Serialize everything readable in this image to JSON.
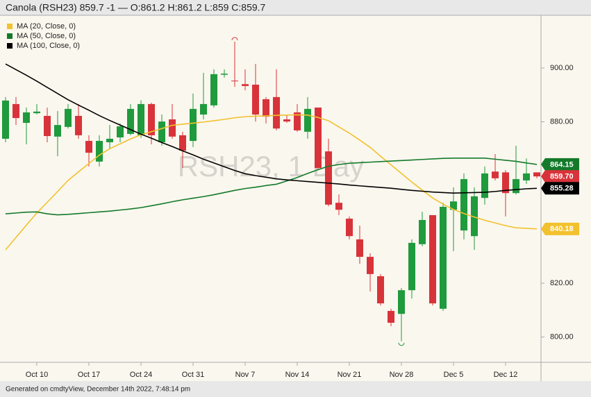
{
  "chart_data": {
    "type": "candlestick",
    "title": "Canola (RSH23) 859.7 -1 — O:861.2 H:861.2 L:859 C:859.7",
    "watermark": "RSH23, 1 Day",
    "footer": "Generated on cmdtyView, December 14th 2022, 7:48:14 pm",
    "categories": [
      null,
      null,
      null,
      "Oct 10",
      null,
      null,
      null,
      null,
      "Oct 17",
      null,
      null,
      null,
      null,
      "Oct 24",
      null,
      null,
      null,
      null,
      "Oct 31",
      null,
      null,
      null,
      null,
      "Nov 7",
      null,
      null,
      null,
      null,
      "Nov 14",
      null,
      null,
      null,
      null,
      "Nov 21",
      null,
      null,
      null,
      null,
      "Nov 28",
      null,
      null,
      null,
      null,
      "Dec 5",
      null,
      null,
      null,
      null,
      "Dec 12",
      null,
      null,
      null
    ],
    "up_color": "#1f9a3d",
    "down_color": "#d8333a",
    "open": [
      873.7,
      886.6,
      879.6,
      883.2,
      882.2,
      874.5,
      878.1,
      882.2,
      872.9,
      865.2,
      872.4,
      874.2,
      875.5,
      875,
      886.6,
      872.4,
      880.9,
      875,
      872.9,
      882.7,
      886.1,
      897.5,
      895.3,
      894,
      893.8,
      888.4,
      889.2,
      880.9,
      883.5,
      876.3,
      885.3,
      869,
      849.9,
      844,
      836.3,
      829.8,
      822.6,
      809.7,
      808.6,
      817.4,
      834.5,
      845.3,
      810.5,
      847.3,
      839.6,
      837.5,
      851.7,
      861.5,
      861.2,
      853.5,
      858.2,
      861.2
    ],
    "high": [
      889.2,
      889.2,
      885.3,
      886.6,
      885.3,
      884,
      886.6,
      886.6,
      875,
      875,
      878.8,
      879.4,
      886.6,
      888,
      887.1,
      882.7,
      886.6,
      876.3,
      890.5,
      898.2,
      899.5,
      899.5,
      909.8,
      899.5,
      901.5,
      889.2,
      899.5,
      882.5,
      886.6,
      889.2,
      885.3,
      873.7,
      853,
      844.8,
      841.4,
      831.1,
      823.4,
      810.5,
      818.2,
      836.3,
      846.6,
      845.3,
      849.9,
      855.6,
      860.8,
      855.6,
      863.4,
      868,
      862,
      871.1,
      866.4,
      861.2
    ],
    "low": [
      872.4,
      878.8,
      871.6,
      882.7,
      872.4,
      867.2,
      877.5,
      873.7,
      863.4,
      863.4,
      869.8,
      872.4,
      875,
      874,
      871.6,
      871.1,
      873.7,
      862.8,
      870.6,
      880.9,
      885.3,
      896.4,
      893,
      891.7,
      880.1,
      879.4,
      876.8,
      879.6,
      876.3,
      873.7,
      862,
      848.6,
      845.3,
      836.3,
      827.2,
      816.9,
      811.7,
      804,
      798.4,
      814.3,
      833.7,
      811.7,
      809.7,
      831.9,
      836.3,
      832.4,
      849.2,
      858.2,
      844.8,
      853,
      856.9,
      859
    ],
    "close": [
      887.9,
      881.4,
      883.5,
      883.8,
      874.7,
      878.8,
      884.8,
      875,
      868.5,
      872.9,
      873.7,
      878.3,
      884.8,
      886.6,
      875,
      880.1,
      874.5,
      869.3,
      884.8,
      886.6,
      897.7,
      897.9,
      895.1,
      893.3,
      882.7,
      881.9,
      877.5,
      880.1,
      876.8,
      884.8,
      862.8,
      849.2,
      847.3,
      837.5,
      829.8,
      823.4,
      812.5,
      805.3,
      817.4,
      835,
      843.5,
      812.5,
      848.4,
      850.4,
      858.7,
      852.3,
      860.8,
      859,
      853.5,
      858.7,
      860.8,
      859.7
    ],
    "series": [
      {
        "name": "MA (20, Close, 0)",
        "color": "#f2c12e",
        "values": [
          832.4,
          837.0,
          841.6,
          846.1,
          850.1,
          854.1,
          858.2,
          861.4,
          864.5,
          867.6,
          870.0,
          871.8,
          873.6,
          875.2,
          876.3,
          877.5,
          878.7,
          879.1,
          879.5,
          879.9,
          880.4,
          880.9,
          881.5,
          881.9,
          882.1,
          882.2,
          882.4,
          882.5,
          882.6,
          882.5,
          881.6,
          880.4,
          878.1,
          875.8,
          873.2,
          870.5,
          867.2,
          864.0,
          860.8,
          857.6,
          854.6,
          851.7,
          849.4,
          847.4,
          845.9,
          844.6,
          843.4,
          842.4,
          841.4,
          840.6,
          840.4,
          840.18
        ]
      },
      {
        "name": "MA (50, Close, 0)",
        "color": "#137a2a",
        "values": [
          845.8,
          846.1,
          846.4,
          846.5,
          845.8,
          845.4,
          845.6,
          845.9,
          846.2,
          846.5,
          846.8,
          847.2,
          847.6,
          848.1,
          848.8,
          849.5,
          850.3,
          851.0,
          851.6,
          852.2,
          852.9,
          853.7,
          854.5,
          855.2,
          855.7,
          856.3,
          856.8,
          858.0,
          859.3,
          860.8,
          862.2,
          863.5,
          864.1,
          864.6,
          864.8,
          865.0,
          865.2,
          865.4,
          865.6,
          865.8,
          866.0,
          866.2,
          866.4,
          866.5,
          866.5,
          866.5,
          866.5,
          866.1,
          865.7,
          865.3,
          864.7,
          864.15
        ]
      },
      {
        "name": "MA (100, Close, 0)",
        "color": "#000000",
        "values": [
          901.5,
          899.4,
          897.3,
          895.1,
          892.8,
          890.5,
          888.2,
          886.2,
          884.3,
          882.3,
          880.5,
          878.8,
          877.1,
          875.4,
          873.9,
          872.3,
          870.8,
          869.2,
          867.7,
          866.1,
          864.7,
          863.3,
          861.9,
          860.7,
          860.0,
          859.4,
          858.8,
          858.4,
          858.1,
          857.8,
          857.5,
          857.2,
          856.9,
          856.5,
          856.2,
          855.9,
          855.6,
          855.3,
          854.9,
          854.5,
          854.2,
          853.9,
          853.7,
          853.5,
          853.6,
          853.7,
          853.8,
          854.1,
          854.5,
          854.8,
          855.1,
          855.28
        ]
      }
    ],
    "price_tags": [
      {
        "value": 864.15,
        "label": "864.15",
        "color": "#137a2a"
      },
      {
        "value": 859.7,
        "label": "859.70",
        "color": "#d8333a"
      },
      {
        "value": 855.28,
        "label": "855.28",
        "color": "#000000"
      },
      {
        "value": 840.18,
        "label": "840.18",
        "color": "#f2c12e"
      }
    ],
    "ylim": [
      790.6,
      919.6
    ],
    "yticks": [
      {
        "value": 800,
        "label": "800.00"
      },
      {
        "value": 820,
        "label": "820.00"
      },
      {
        "value": 880,
        "label": "880.00"
      },
      {
        "value": 900,
        "label": "900.00"
      }
    ],
    "legend": "top-left"
  }
}
